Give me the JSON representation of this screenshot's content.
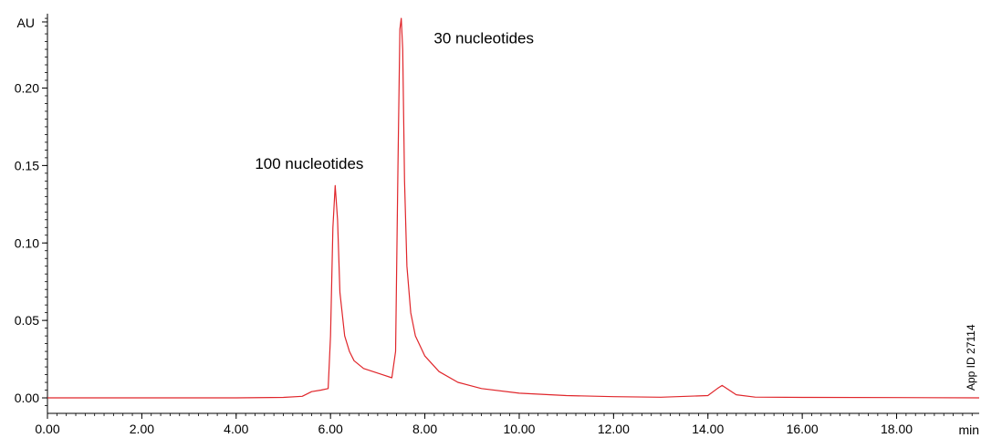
{
  "chart_data": {
    "type": "line",
    "ylabel": "AU",
    "xlabel": "min",
    "xlim": [
      0,
      19.75
    ],
    "ylim": [
      -0.01,
      0.248
    ],
    "grid": false,
    "x_ticks": [
      0,
      2,
      4,
      6,
      8,
      10,
      12,
      14,
      16,
      18
    ],
    "x_tick_labels": [
      "0.00",
      "2.00",
      "4.00",
      "6.00",
      "8.00",
      "10.00",
      "12.00",
      "14.00",
      "16.00",
      "18.00"
    ],
    "y_ticks": [
      0,
      0.05,
      0.1,
      0.15,
      0.2
    ],
    "y_tick_labels": [
      "0.00",
      "0.05",
      "0.10",
      "0.15",
      "0.20"
    ],
    "series": [
      {
        "color": "#e0262b",
        "x": [
          0,
          2,
          4,
          5,
          5.4,
          5.6,
          5.8,
          5.95,
          6.0,
          6.05,
          6.1,
          6.15,
          6.2,
          6.3,
          6.4,
          6.5,
          6.7,
          6.9,
          7.1,
          7.3,
          7.38,
          7.43,
          7.47,
          7.5,
          7.53,
          7.57,
          7.62,
          7.7,
          7.8,
          8.0,
          8.3,
          8.7,
          9.2,
          10,
          11,
          12,
          13,
          14.0,
          14.2,
          14.3,
          14.4,
          14.6,
          15,
          16,
          18,
          19.75
        ],
        "values": [
          0,
          0,
          0,
          0.0003,
          0.001,
          0.004,
          0.005,
          0.006,
          0.04,
          0.11,
          0.137,
          0.115,
          0.068,
          0.04,
          0.03,
          0.024,
          0.019,
          0.017,
          0.015,
          0.013,
          0.03,
          0.15,
          0.238,
          0.245,
          0.225,
          0.14,
          0.085,
          0.055,
          0.04,
          0.027,
          0.017,
          0.01,
          0.006,
          0.003,
          0.0015,
          0.0008,
          0.0004,
          0.0015,
          0.006,
          0.008,
          0.006,
          0.002,
          0.0005,
          0.0003,
          0.0002,
          0
        ]
      }
    ],
    "annotations": [
      {
        "text": "100 nucleotides",
        "x": 5.55,
        "y": 0.148
      },
      {
        "text": "30 nucleotides",
        "x": 9.25,
        "y": 0.229
      }
    ],
    "note": "App ID 27114"
  }
}
